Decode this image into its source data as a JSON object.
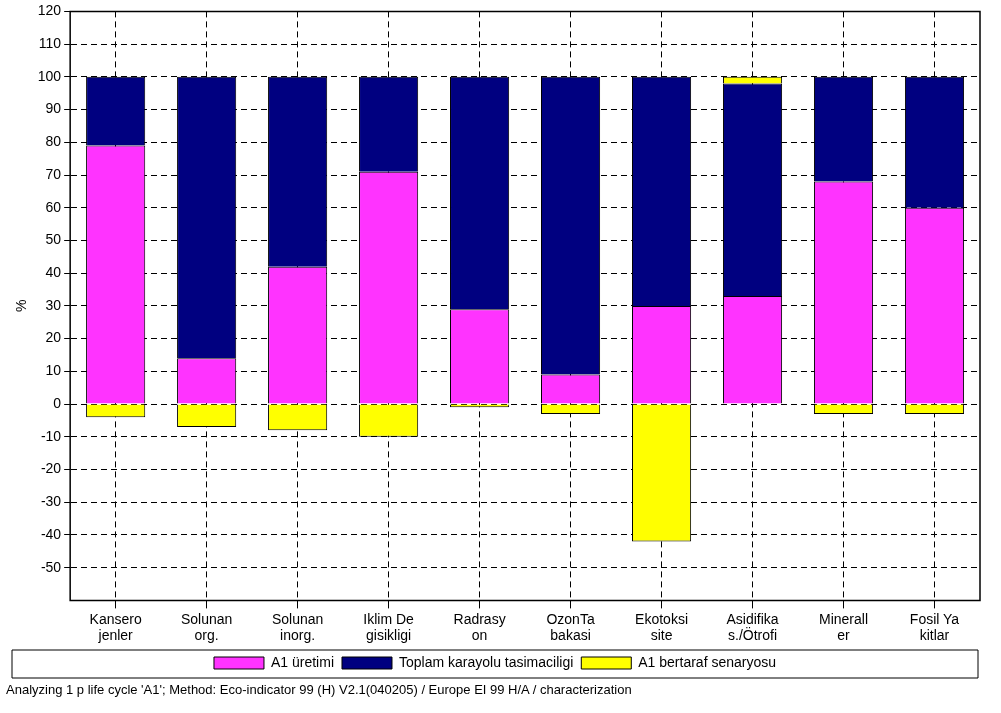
{
  "chart_data": {
    "type": "bar",
    "stacked": true,
    "ylabel": "%",
    "categories": [
      "Kansero\njenler",
      "Solunan\norg.",
      "Solunan\ninorg.",
      "Iklim De\ngisikligi",
      "Radrasy\non",
      "OzonTa\nbakasi",
      "Ekotoksi\nsite",
      "Asidifika\ns./Ötrofi",
      "Minerall\ner",
      "Fosil Ya\nkitlar"
    ],
    "series": [
      {
        "name": "A1 üretimi",
        "color": "#ff33ff",
        "values": [
          79,
          14,
          42,
          71,
          29,
          9,
          30,
          33,
          68,
          60
        ]
      },
      {
        "name": "Toplam karayolu tasimaciligi",
        "color": "#000080",
        "values": [
          21,
          86,
          58,
          29,
          71,
          91,
          70,
          65,
          32,
          40
        ]
      },
      {
        "name": "A1 bertaraf senaryosu",
        "color": "#ffff00",
        "values": [
          -4,
          -7,
          -8,
          -10,
          -1,
          -3,
          -42,
          2,
          -3,
          -3
        ]
      }
    ],
    "ylim": [
      -60,
      120
    ],
    "yticks": [
      -50,
      -40,
      -30,
      -20,
      -10,
      0,
      10,
      20,
      30,
      40,
      50,
      60,
      70,
      80,
      90,
      100,
      110,
      120
    ],
    "grid": true,
    "legend": "bottom",
    "annotations": [
      "Analyzing 1 p life cycle 'A1'; Method: Eco-indicator 99 (H) V2.1(040205) / Europe EI 99 H/A / characterization"
    ]
  }
}
